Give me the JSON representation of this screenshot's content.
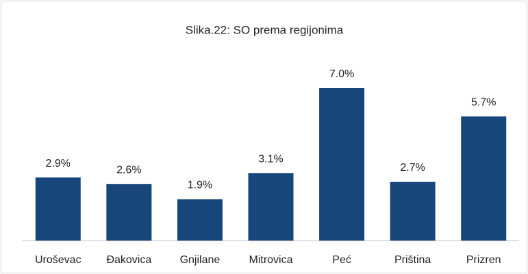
{
  "chart_data": {
    "type": "bar",
    "title": "Slika.22: SO prema regijonima",
    "categories": [
      "Uroševac",
      "Đakovica",
      "Gnjilane",
      "Mitrovica",
      "Peć",
      "Priština",
      "Prizren"
    ],
    "values": [
      2.9,
      2.6,
      1.9,
      3.1,
      7.0,
      2.7,
      5.7
    ],
    "value_labels": [
      "2.9%",
      "2.6%",
      "1.9%",
      "3.1%",
      "7.0%",
      "2.7%",
      "5.7%"
    ],
    "color": "#17477a"
  }
}
